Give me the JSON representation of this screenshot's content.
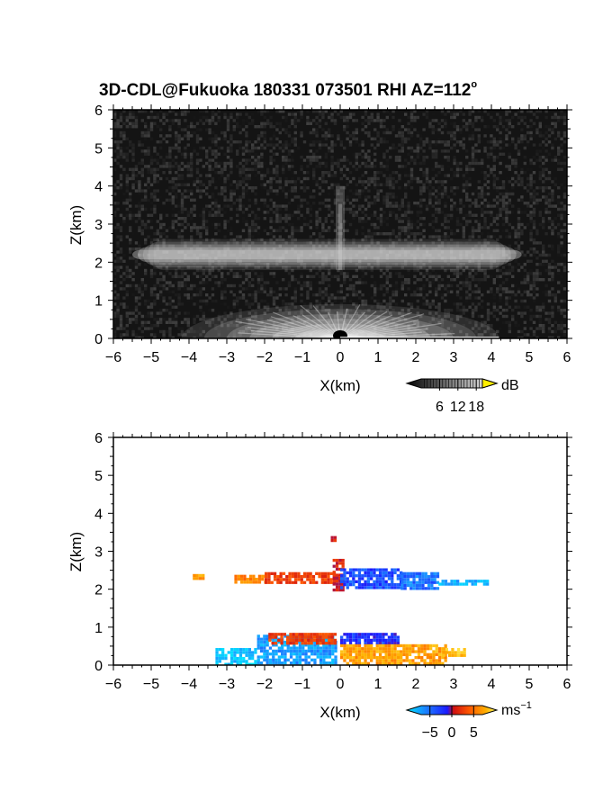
{
  "chart_data": [
    {
      "type": "heatmap",
      "title": "3D-CDL@Fukuoka 180331 073501 RHI AZ=112º",
      "title_main": "3D-CDL@Fukuoka 180331 073501 RHI AZ=112",
      "title_sup": "o",
      "xlabel": "X(km)",
      "ylabel": "Z(km)",
      "xlim": [
        -6,
        6
      ],
      "ylim": [
        0,
        6
      ],
      "xticks": [
        -6,
        -5,
        -4,
        -3,
        -2,
        -1,
        0,
        1,
        2,
        3,
        4,
        5,
        6
      ],
      "yticks": [
        0,
        1,
        2,
        3,
        4,
        5,
        6
      ],
      "colormap": "grayscale",
      "background": "#141414",
      "colorbar": {
        "unit": "dB",
        "ticks": [
          6,
          12,
          18
        ],
        "range": [
          0,
          20
        ]
      },
      "features": [
        {
          "name": "elevated layer",
          "x_range": [
            -5.5,
            4.8
          ],
          "z": 2.2,
          "thickness": 0.25,
          "intensity_db": 10
        },
        {
          "name": "vertical streak",
          "x": 0,
          "z_range": [
            1.8,
            4.0
          ],
          "intensity_db": 8
        },
        {
          "name": "near-field fan",
          "x_range": [
            -4.2,
            4.2
          ],
          "z_range": [
            0,
            0.9
          ],
          "intensity_db": 18
        }
      ]
    },
    {
      "type": "scatter",
      "xlabel": "X(km)",
      "ylabel": "Z(km)",
      "xlim": [
        -6,
        6
      ],
      "ylim": [
        0,
        6
      ],
      "xticks": [
        -6,
        -5,
        -4,
        -3,
        -2,
        -1,
        0,
        1,
        2,
        3,
        4,
        5,
        6
      ],
      "yticks": [
        0,
        1,
        2,
        3,
        4,
        5,
        6
      ],
      "colormap": "doppler velocity",
      "background": "#ffffff",
      "colorbar": {
        "unit": "ms",
        "unit_sup": "−1",
        "ticks": [
          -5,
          0,
          5
        ],
        "tick_labels": [
          "−5",
          "0",
          "5"
        ],
        "range": [
          -7,
          7
        ]
      },
      "regions": [
        {
          "x_range": [
            -3.9,
            -3.6
          ],
          "z_range": [
            2.25,
            2.4
          ],
          "velocity": 4.5
        },
        {
          "x_range": [
            -2.8,
            -2.0
          ],
          "z_range": [
            2.2,
            2.38
          ],
          "velocity": 3.8
        },
        {
          "x_range": [
            -2.0,
            -0.1
          ],
          "z_range": [
            2.15,
            2.45
          ],
          "velocity": 1.5
        },
        {
          "x_range": [
            -0.2,
            0.05
          ],
          "z_range": [
            2.0,
            2.8
          ],
          "velocity": 0.5
        },
        {
          "x_range": [
            -0.25,
            -0.1
          ],
          "z_range": [
            3.25,
            3.4
          ],
          "velocity": 0.3
        },
        {
          "x_range": [
            0.0,
            1.6
          ],
          "z_range": [
            2.05,
            2.55
          ],
          "velocity": -3.0
        },
        {
          "x_range": [
            1.6,
            2.6
          ],
          "z_range": [
            2.05,
            2.45
          ],
          "velocity": -4.0
        },
        {
          "x_range": [
            2.6,
            3.9
          ],
          "z_range": [
            2.1,
            2.25
          ],
          "velocity": -5.5
        },
        {
          "x_range": [
            -3.3,
            -2.2
          ],
          "z_range": [
            0.05,
            0.45
          ],
          "velocity": -6.0
        },
        {
          "x_range": [
            -2.2,
            -0.1
          ],
          "z_range": [
            0.05,
            0.8
          ],
          "velocity": -5.0
        },
        {
          "x_range": [
            -1.9,
            -0.1
          ],
          "z_range": [
            0.55,
            0.85
          ],
          "velocity": 1.5
        },
        {
          "x_range": [
            0.0,
            1.5
          ],
          "z_range": [
            0.55,
            0.85
          ],
          "velocity": -2.5
        },
        {
          "x_range": [
            0.0,
            2.8
          ],
          "z_range": [
            0.05,
            0.55
          ],
          "velocity": 4.5
        },
        {
          "x_range": [
            2.7,
            3.3
          ],
          "z_range": [
            0.25,
            0.45
          ],
          "velocity": 5.5
        }
      ]
    }
  ]
}
